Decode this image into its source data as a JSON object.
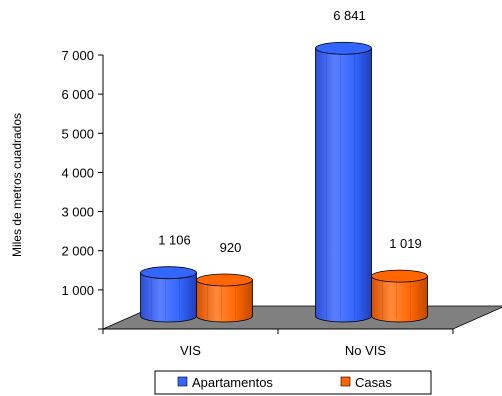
{
  "chart_data": {
    "type": "bar",
    "style": "3d-cylinder",
    "categories": [
      "VIS",
      "No VIS"
    ],
    "series": [
      {
        "name": "Apartamentos",
        "values": [
          1106,
          6841
        ],
        "color": "#3366ff"
      },
      {
        "name": "Casas",
        "values": [
          920,
          1019
        ],
        "color": "#ff6600"
      }
    ],
    "data_labels": [
      [
        "1 106",
        "6 841"
      ],
      [
        "920",
        "1 019"
      ]
    ],
    "ylabel": "Miles de metros cuadrados",
    "ylim": [
      0,
      7000
    ],
    "yticks": [
      1000,
      2000,
      3000,
      4000,
      5000,
      6000,
      7000
    ],
    "ytick_labels": [
      "1 000",
      "2 000",
      "3 000",
      "4 000",
      "5 000",
      "6 000",
      "7 000"
    ],
    "grid": false,
    "floor_color": "#808080",
    "legend": {
      "placement": "bottom",
      "entries": [
        "Apartamentos",
        "Casas"
      ]
    }
  }
}
